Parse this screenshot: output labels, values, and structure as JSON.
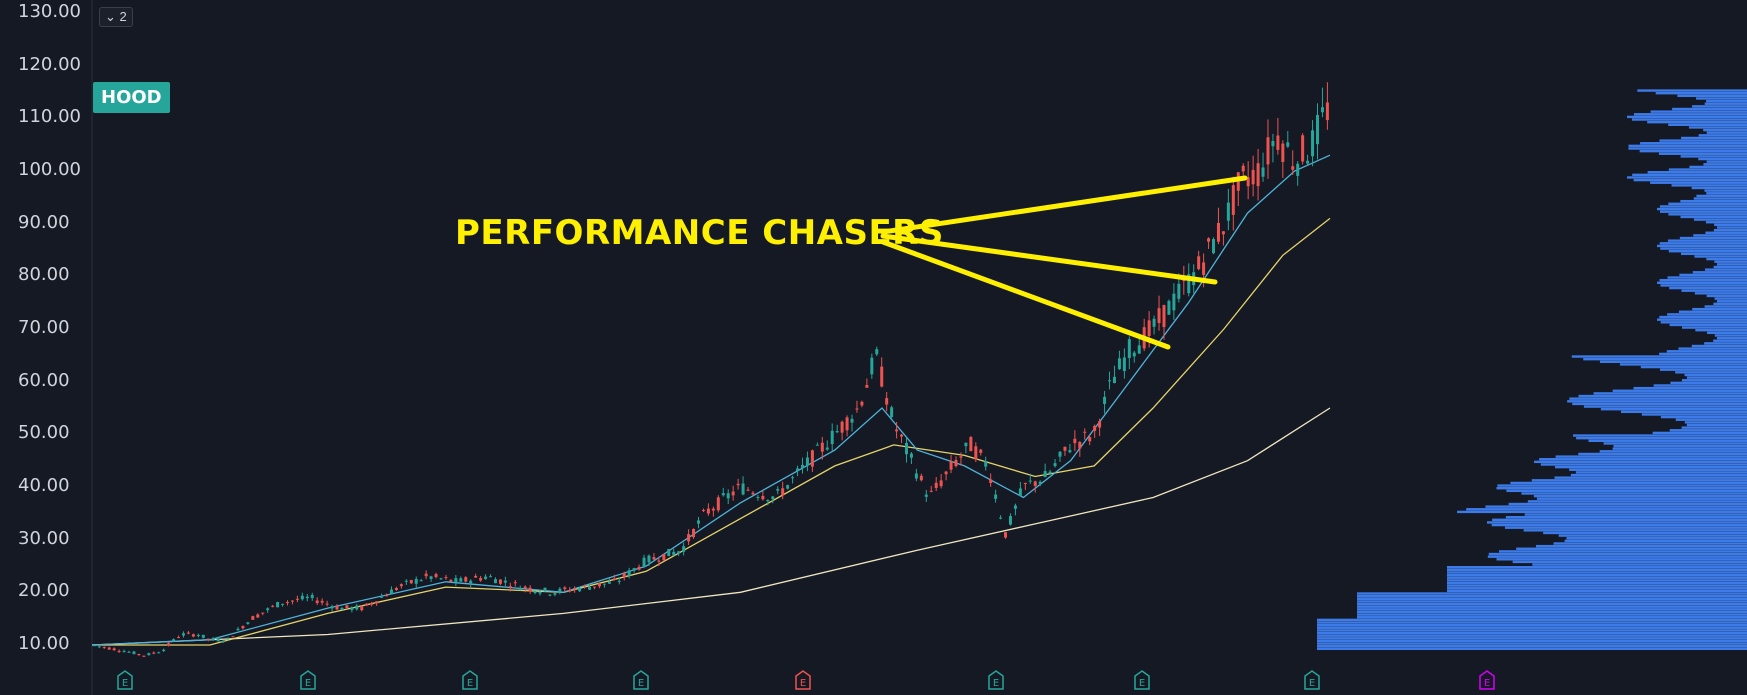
{
  "ticker": "HOOD",
  "badge": "⌄ 2",
  "annotation": "PERFORMANCE CHASERS",
  "colors": {
    "bg": "#151924",
    "up": "#26a69a",
    "down": "#ef5350",
    "ma_fast": "#4fb3d9",
    "ma_mid": "#e6d36a",
    "ma_slow": "#efe6c0",
    "arrow": "#ffef00",
    "volume": "#3d7be8"
  },
  "chart_data": {
    "type": "candlestick",
    "title": "",
    "ylim": [
      5,
      132
    ],
    "yticks": [
      "130.00",
      "120.00",
      "110.00",
      "100.00",
      "90.00",
      "80.00",
      "70.00",
      "60.00",
      "50.00",
      "40.00",
      "30.00",
      "20.00",
      "10.00"
    ],
    "earnings_markers": [
      {
        "label": "E",
        "color": "#26a69a"
      },
      {
        "label": "E",
        "color": "#26a69a"
      },
      {
        "label": "E",
        "color": "#26a69a"
      },
      {
        "label": "E",
        "color": "#26a69a"
      },
      {
        "label": "E",
        "color": "#ef5350"
      },
      {
        "label": "E",
        "color": "#26a69a"
      },
      {
        "label": "E",
        "color": "#26a69a"
      },
      {
        "label": "E",
        "color": "#26a69a"
      },
      {
        "label": "E",
        "color": "#d500f9"
      }
    ],
    "price_path": [
      [
        0,
        10
      ],
      [
        25,
        9
      ],
      [
        45,
        8
      ],
      [
        60,
        9
      ],
      [
        75,
        12
      ],
      [
        90,
        12
      ],
      [
        100,
        11
      ],
      [
        115,
        11
      ],
      [
        135,
        15
      ],
      [
        160,
        18
      ],
      [
        185,
        19
      ],
      [
        210,
        17
      ],
      [
        230,
        17
      ],
      [
        260,
        21
      ],
      [
        285,
        23
      ],
      [
        310,
        22
      ],
      [
        335,
        23
      ],
      [
        365,
        21
      ],
      [
        390,
        20
      ],
      [
        420,
        21
      ],
      [
        445,
        22
      ],
      [
        470,
        26
      ],
      [
        500,
        28
      ],
      [
        520,
        35
      ],
      [
        550,
        40
      ],
      [
        580,
        38
      ],
      [
        605,
        44
      ],
      [
        630,
        50
      ],
      [
        650,
        55
      ],
      [
        665,
        65
      ],
      [
        680,
        52
      ],
      [
        695,
        45
      ],
      [
        710,
        38
      ],
      [
        730,
        44
      ],
      [
        745,
        48
      ],
      [
        760,
        44
      ],
      [
        775,
        31
      ],
      [
        790,
        40
      ],
      [
        810,
        42
      ],
      [
        830,
        48
      ],
      [
        850,
        50
      ],
      [
        865,
        60
      ],
      [
        880,
        66
      ],
      [
        900,
        70
      ],
      [
        920,
        76
      ],
      [
        940,
        82
      ],
      [
        960,
        90
      ],
      [
        975,
        98
      ],
      [
        990,
        100
      ],
      [
        1005,
        107
      ],
      [
        1020,
        102
      ],
      [
        1035,
        105
      ],
      [
        1050,
        113
      ]
    ],
    "ma_fast_path": [
      [
        0,
        10
      ],
      [
        100,
        11
      ],
      [
        200,
        17
      ],
      [
        300,
        22
      ],
      [
        400,
        20
      ],
      [
        470,
        25
      ],
      [
        550,
        37
      ],
      [
        630,
        47
      ],
      [
        670,
        55
      ],
      [
        700,
        47
      ],
      [
        740,
        44
      ],
      [
        790,
        38
      ],
      [
        830,
        45
      ],
      [
        870,
        57
      ],
      [
        930,
        75
      ],
      [
        980,
        92
      ],
      [
        1020,
        100
      ],
      [
        1050,
        103
      ]
    ],
    "ma_mid_path": [
      [
        0,
        10
      ],
      [
        100,
        10
      ],
      [
        200,
        16
      ],
      [
        300,
        21
      ],
      [
        400,
        20
      ],
      [
        470,
        24
      ],
      [
        550,
        34
      ],
      [
        630,
        44
      ],
      [
        680,
        48
      ],
      [
        740,
        46
      ],
      [
        800,
        42
      ],
      [
        850,
        44
      ],
      [
        900,
        55
      ],
      [
        960,
        70
      ],
      [
        1010,
        84
      ],
      [
        1050,
        91
      ]
    ],
    "ma_slow_path": [
      [
        0,
        10
      ],
      [
        200,
        12
      ],
      [
        400,
        16
      ],
      [
        550,
        20
      ],
      [
        700,
        28
      ],
      [
        800,
        33
      ],
      [
        900,
        38
      ],
      [
        980,
        45
      ],
      [
        1050,
        55
      ]
    ]
  }
}
